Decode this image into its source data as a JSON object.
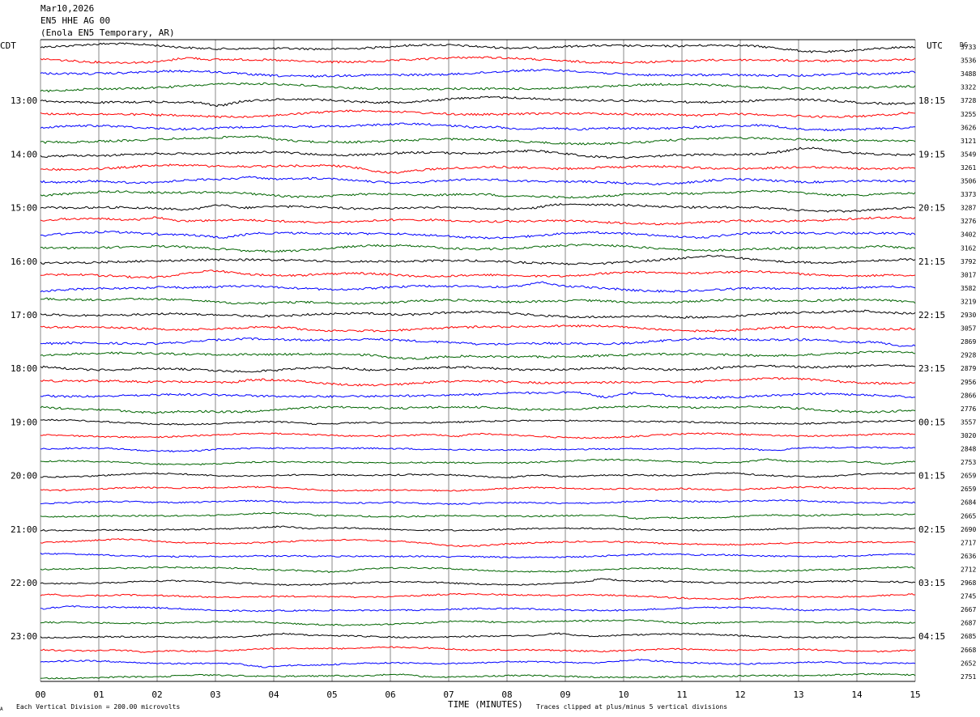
{
  "header": {
    "date": "Mar10,2026",
    "station": "EN5 HHE AG 00",
    "location": "(Enola EN5 Temporary, AR)"
  },
  "footer": {
    "scale_note": "Each Vertical Division =  200.00 microvolts",
    "clip_note": "Traces clipped at plus/minus 5 vertical divisions",
    "corner_mark": "A"
  },
  "chart_data": {
    "type": "line",
    "title": "",
    "xlabel": "TIME (MINUTES)",
    "ylabel": "",
    "left_axis_label": "CDT",
    "right_axis_label": "UTC",
    "dc_label": "DC",
    "xlim": [
      0,
      15
    ],
    "x_ticks": [
      "00",
      "01",
      "02",
      "03",
      "04",
      "05",
      "06",
      "07",
      "08",
      "09",
      "10",
      "11",
      "12",
      "13",
      "14",
      "15"
    ],
    "grid": true,
    "trace_colors": [
      "#000000",
      "#ff0000",
      "#0000ff",
      "#006400"
    ],
    "left_hour_labels": [
      "13:00",
      "14:00",
      "15:00",
      "16:00",
      "17:00",
      "18:00",
      "19:00",
      "20:00",
      "21:00",
      "22:00",
      "23:00"
    ],
    "right_hour_labels": [
      "18:15",
      "19:15",
      "20:15",
      "21:15",
      "22:15",
      "23:15",
      "00:15",
      "01:15",
      "02:15",
      "03:15",
      "04:15"
    ],
    "dc_offsets": [
      "3733",
      "3536",
      "3488",
      "3322",
      "3728",
      "3255",
      "3626",
      "3121",
      "3549",
      "3261",
      "3506",
      "3373",
      "3287",
      "3276",
      "3402",
      "3162",
      "3792",
      "3017",
      "3582",
      "3219",
      "2930",
      "3057",
      "2869",
      "2928",
      "2879",
      "2956",
      "2866",
      "2776",
      "3557",
      "3020",
      "2848",
      "2753",
      "2659",
      "2659",
      "2684",
      "2665",
      "2690",
      "2717",
      "2636",
      "2712",
      "2968",
      "2745",
      "2667",
      "2687",
      "2685",
      "2668",
      "2652",
      "2751"
    ]
  }
}
